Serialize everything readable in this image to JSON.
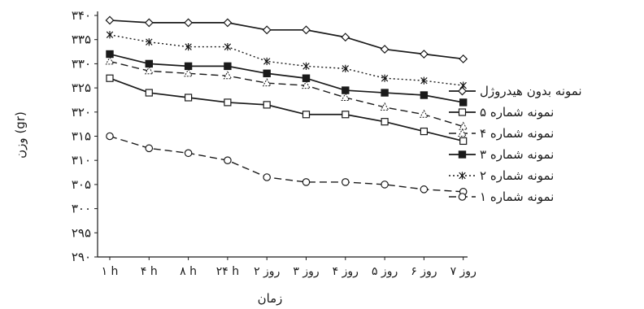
{
  "chart_data": {
    "type": "line",
    "xlabel": "زمان",
    "ylabel": "وزن (gr)",
    "ylim": [
      290,
      340
    ],
    "yticks": [
      "۲۹۰",
      "۲۹۵",
      "۳۰۰",
      "۳۰۵",
      "۳۱۰",
      "۳۱۵",
      "۳۲۰",
      "۳۲۵",
      "۳۳۰",
      "۳۳۵",
      "۳۴۰"
    ],
    "categories": [
      "۱ h",
      "۴ h",
      "۸ h",
      "۲۴ h",
      "روز ۲",
      "روز ۳",
      "روز ۴",
      "روز ۵",
      "روز ۶",
      "روز ۷"
    ],
    "grid": false,
    "legend": "right",
    "series": [
      {
        "name": "نمونه بدون هیدروژل",
        "marker": "diamond",
        "dash": "solid",
        "color": "#1a1a1a",
        "values": [
          339,
          338.5,
          338.5,
          338.5,
          337,
          337,
          335.5,
          333,
          332,
          331
        ]
      },
      {
        "name": "نمونه شماره ۵",
        "marker": "square-open",
        "dash": "solid",
        "color": "#1a1a1a",
        "values": [
          327,
          324,
          323,
          322,
          321.5,
          319.5,
          319.5,
          318,
          316,
          314
        ]
      },
      {
        "name": "نمونه شماره ۴",
        "marker": "triangle",
        "dash": "dashed",
        "color": "#1a1a1a",
        "values": [
          330.5,
          328.5,
          328,
          327.5,
          326,
          325.5,
          323,
          321,
          319.5,
          317
        ]
      },
      {
        "name": "نمونه شماره ۳",
        "marker": "square-filled",
        "dash": "solid",
        "color": "#1a1a1a",
        "values": [
          332,
          330,
          329.5,
          329.5,
          328,
          327,
          324.5,
          324,
          323.5,
          322
        ]
      },
      {
        "name": "نمونه شماره ۲",
        "marker": "star",
        "dash": "dotted",
        "color": "#1a1a1a",
        "values": [
          336,
          334.5,
          333.5,
          333.5,
          330.5,
          329.5,
          329,
          327,
          326.5,
          325.5
        ]
      },
      {
        "name": "نمونه شماره ۱",
        "marker": "circle",
        "dash": "dashed",
        "color": "#1a1a1a",
        "values": [
          315,
          312.5,
          311.5,
          310,
          306.5,
          305.5,
          305.5,
          305,
          304,
          303.5
        ]
      }
    ]
  }
}
